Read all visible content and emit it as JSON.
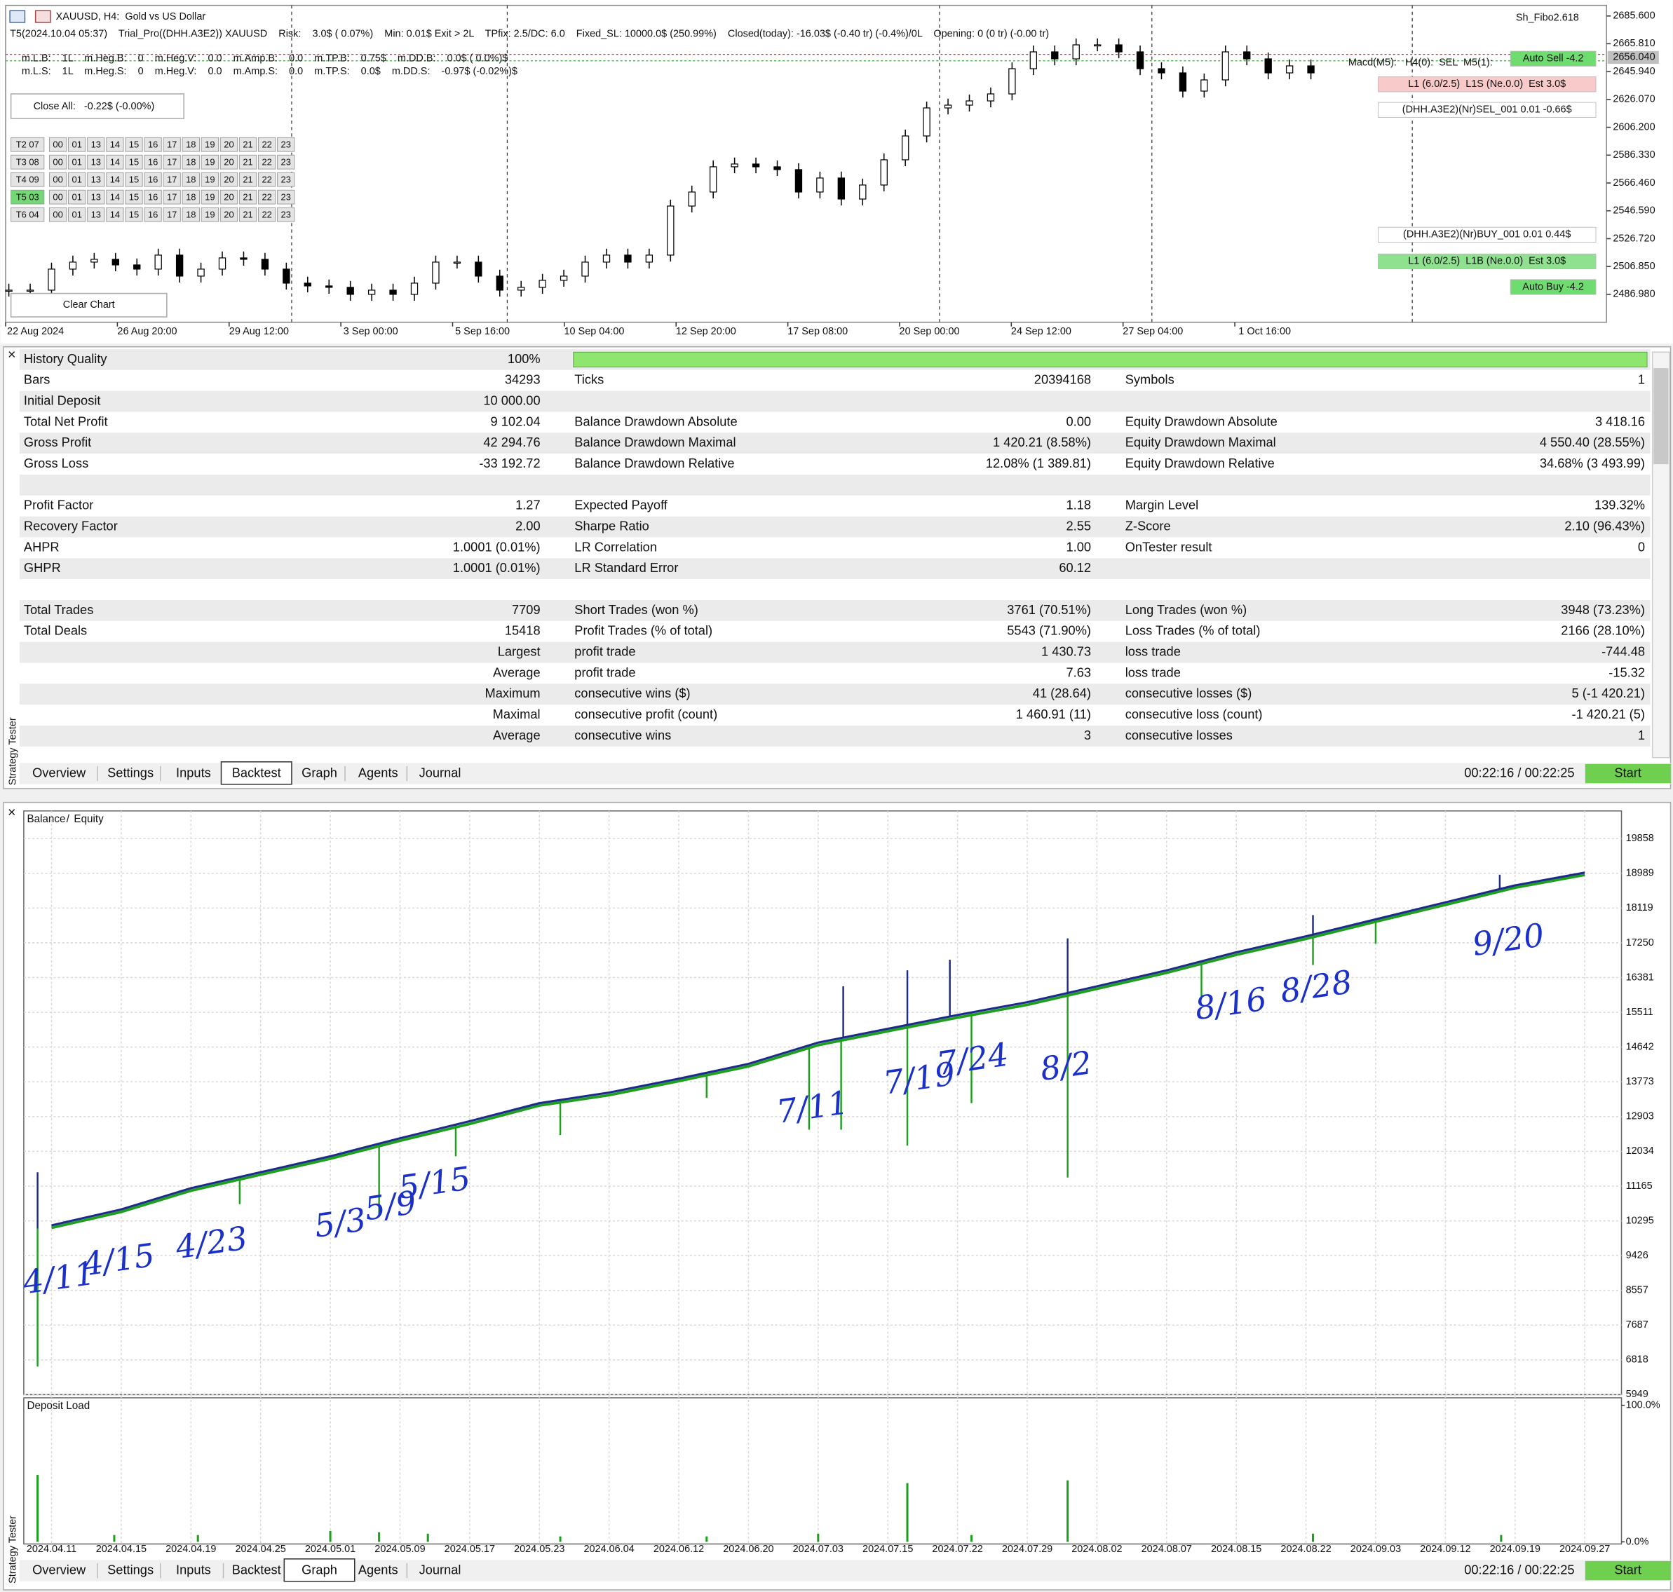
{
  "price_chart": {
    "type": "candlestick",
    "title": "XAUUSD, H4:  Gold vs US Dollar",
    "indicator": "Sh_Fibo2.618",
    "info_lines": [
      "T5(2024.10.04 05:37)    Trial_Pro((DHH.A3E2)) XAUUSD    Risk:    3.0$ ( 0.07%)    Min: 0.01$ Exit > 2L    TPfix: 2.5/DC: 6.0    Fixed_SL: 10000.0$ (250.99%)    Closed(today): -16.03$ (-0.40 tr) (-0.4%)/0L    Opening: 0 (0 tr) (-0.00 tr)",
      "m.L.B:    1L    m.Heg.B:    0    m.Heg.V:    0.0    m.Amp.B:    0.0    m.TP.B:    0.75$    m.DD.B:    0.0$ ( 0.0%)$",
      "m.L.S:    1L    m.Heg.S:    0    m.Heg.V:    0.0    m.Amp.S:    0.0    m.TP.S:    0.0$    m.DD.S:    -0.97$ (-0.02%)$"
    ],
    "overlay_text": "Macd(M5):   H4(0):  SEL  M5(1):",
    "close_all": "Close All:   -0.22$ (-0.00%)",
    "clear_chart": "Clear Chart",
    "schedule": {
      "days": [
        "T2 07",
        "T3 08",
        "T4 09",
        "T5 03",
        "T6 04"
      ],
      "active_day": 3,
      "hours": [
        "00",
        "01",
        "13",
        "14",
        "15",
        "16",
        "17",
        "18",
        "19",
        "20",
        "21",
        "22",
        "23"
      ]
    },
    "side_labels": [
      {
        "text": "Auto Sell -4.2",
        "bg": "#6fdc6f",
        "fg": "#ffffff"
      },
      {
        "text": "L1 (6.0/2.5)  L1S (Ne.0.0)  Est 3.0$",
        "bg": "#f8caca",
        "fg": "#7a1010"
      },
      {
        "text": "(DHH.A3E2)(Nr)SEL_001 0.01 -0.66$",
        "bg": "#ffffff",
        "fg": "#b01818"
      },
      {
        "text": "(DHH.A3E2)(Nr)BUY_001 0.01 0.44$",
        "bg": "#ffffff",
        "fg": "#1a2a90"
      },
      {
        "text": "L1 (6.0/2.5)  L1B (Ne.0.0)  Est 3.0$",
        "bg": "#8fe08f",
        "fg": "#114411"
      },
      {
        "text": "Auto Buy -4.2",
        "bg": "#6fdc6f",
        "fg": "#ffffff"
      }
    ],
    "categories": [
      "22 Aug 2024",
      "26 Aug 20:00",
      "29 Aug 12:00",
      "3 Sep 00:00",
      "5 Sep 16:00",
      "10 Sep 04:00",
      "12 Sep 20:00",
      "17 Sep 08:00",
      "20 Sep 00:00",
      "24 Sep 12:00",
      "27 Sep 04:00",
      "1 Oct 16:00"
    ],
    "closes": [
      2490,
      2490,
      2505,
      2510,
      2512,
      2508,
      2505,
      2515,
      2500,
      2505,
      2513,
      2512,
      2505,
      2495,
      2493,
      2492,
      2487,
      2490,
      2487,
      2495,
      2510,
      2510,
      2500,
      2490,
      2492,
      2497,
      2500,
      2510,
      2515,
      2510,
      2515,
      2550,
      2560,
      2578,
      2580,
      2578,
      2576,
      2560,
      2570,
      2555,
      2565,
      2583,
      2600,
      2620,
      2622,
      2625,
      2630,
      2648,
      2660,
      2655,
      2665,
      2665,
      2660,
      2648,
      2645,
      2632,
      2640,
      2660,
      2655,
      2645,
      2650,
      2645
    ],
    "current_price": {
      "value": 2656.04,
      "label": "2656.040"
    },
    "ylim": [
      2467.1,
      2693.2
    ],
    "yticks": [
      {
        "value": 2685.6,
        "label": "2685.600"
      },
      {
        "value": 2665.81,
        "label": "2665.810"
      },
      {
        "value": 2645.94,
        "label": "2645.940"
      },
      {
        "value": 2626.07,
        "label": "2626.070"
      },
      {
        "value": 2606.2,
        "label": "2606.200"
      },
      {
        "value": 2586.33,
        "label": "2586.330"
      },
      {
        "value": 2566.46,
        "label": "2566.460"
      },
      {
        "value": 2546.59,
        "label": "2546.590"
      },
      {
        "value": 2526.72,
        "label": "2526.720"
      },
      {
        "value": 2506.85,
        "label": "2506.850"
      },
      {
        "value": 2486.98,
        "label": "2486.980"
      }
    ]
  },
  "stats": {
    "history_quality": 100,
    "rows": [
      {
        "l1": "History Quality",
        "v1": "100%"
      },
      {
        "l1": "Bars",
        "v1": "34293",
        "l2": "Ticks",
        "v2": "20394168",
        "l3": "Symbols",
        "v3": "1"
      },
      {
        "l1": "Initial Deposit",
        "v1": "10 000.00"
      },
      {
        "l1": "Total Net Profit",
        "v1": "9 102.04",
        "l2": "Balance Drawdown Absolute",
        "v2": "0.00",
        "l3": "Equity Drawdown Absolute",
        "v3": "3 418.16"
      },
      {
        "l1": "Gross Profit",
        "v1": "42 294.76",
        "l2": "Balance Drawdown Maximal",
        "v2": "1 420.21 (8.58%)",
        "l3": "Equity Drawdown Maximal",
        "v3": "4 550.40 (28.55%)"
      },
      {
        "l1": "Gross Loss",
        "v1": "-33 192.72",
        "l2": "Balance Drawdown Relative",
        "v2": "12.08% (1 389.81)",
        "l3": "Equity Drawdown Relative",
        "v3": "34.68% (3 493.99)"
      },
      {},
      {
        "l1": "Profit Factor",
        "v1": "1.27",
        "l2": "Expected Payoff",
        "v2": "1.18",
        "l3": "Margin Level",
        "v3": "139.32%"
      },
      {
        "l1": "Recovery Factor",
        "v1": "2.00",
        "l2": "Sharpe Ratio",
        "v2": "2.55",
        "l3": "Z-Score",
        "v3": "2.10 (96.43%)"
      },
      {
        "l1": "AHPR",
        "v1": "1.0001 (0.01%)",
        "l2": "LR Correlation",
        "v2": "1.00",
        "l3": "OnTester result",
        "v3": "0"
      },
      {
        "l1": "GHPR",
        "v1": "1.0001 (0.01%)",
        "l2": "LR Standard Error",
        "v2": "60.12"
      },
      {},
      {
        "l1": "Total Trades",
        "v1": "7709",
        "l2": "Short Trades (won %)",
        "v2": "3761 (70.51%)",
        "l3": "Long Trades (won %)",
        "v3": "3948 (73.23%)"
      },
      {
        "l1": "Total Deals",
        "v1": "15418",
        "l2": "Profit Trades (% of total)",
        "v2": "5543 (71.90%)",
        "l3": "Loss Trades (% of total)",
        "v3": "2166 (28.10%)"
      },
      {
        "v1": "Largest",
        "l2": "profit trade",
        "v2": "1 430.73",
        "l3": "loss trade",
        "v3": "-744.48"
      },
      {
        "v1": "Average",
        "l2": "profit trade",
        "v2": "7.63",
        "l3": "loss trade",
        "v3": "-15.32"
      },
      {
        "v1": "Maximum",
        "l2": "consecutive wins ($)",
        "v2": "41 (28.64)",
        "l3": "consecutive losses ($)",
        "v3": "5 (-1 420.21)"
      },
      {
        "v1": "Maximal",
        "l2": "consecutive profit (count)",
        "v2": "1 460.91 (11)",
        "l3": "consecutive loss (count)",
        "v3": "-1 420.21 (5)"
      },
      {
        "v1": "Average",
        "l2": "consecutive wins",
        "v2": "3",
        "l3": "consecutive losses",
        "v3": "1"
      }
    ]
  },
  "tester_tabs": {
    "panel_title": "Strategy Tester",
    "tabs": [
      "Overview",
      "Settings",
      "Inputs",
      "Backtest",
      "Graph",
      "Agents",
      "Journal"
    ],
    "active": 3,
    "time": "00:22:16 / 00:22:25",
    "start": "Start"
  },
  "balance_chart": {
    "type": "line",
    "legend_separator": "/",
    "categories": [
      "2024.04.11",
      "2024.04.15",
      "2024.04.19",
      "2024.04.25",
      "2024.05.01",
      "2024.05.09",
      "2024.05.17",
      "2024.05.23",
      "2024.06.04",
      "2024.06.12",
      "2024.06.20",
      "2024.07.03",
      "2024.07.15",
      "2024.07.22",
      "2024.07.29",
      "2024.08.02",
      "2024.08.07",
      "2024.08.15",
      "2024.08.22",
      "2024.09.03",
      "2024.09.12",
      "2024.09.19",
      "2024.09.27"
    ],
    "series": [
      {
        "name": "Balance",
        "color": "#1c2a8c",
        "values": [
          10183,
          10582,
          11113,
          11512,
          11911,
          12362,
          12788,
          13240,
          13505,
          13851,
          14223,
          14755,
          15100,
          15446,
          15765,
          16163,
          16562,
          17014,
          17413,
          17838,
          18263,
          18688,
          19007
        ]
      },
      {
        "name": "Equity",
        "color": "#1ea01e",
        "values": [
          10120,
          10520,
          11050,
          11450,
          11850,
          12300,
          12720,
          13180,
          13440,
          13790,
          14160,
          14690,
          15040,
          15380,
          15700,
          16100,
          16500,
          16950,
          17350,
          17780,
          18200,
          18630,
          18950
        ]
      }
    ],
    "equity_spikes": [
      {
        "at": -0.2,
        "value": 6650
      },
      {
        "at": -0.2,
        "value": 11510
      },
      {
        "at": 2.7,
        "value": 10714
      },
      {
        "at": 4.7,
        "value": 10449
      },
      {
        "at": 5.8,
        "value": 11911
      },
      {
        "at": 7.3,
        "value": 12442
      },
      {
        "at": 9.4,
        "value": 13372
      },
      {
        "at": 10.87,
        "value": 12575
      },
      {
        "at": 11.33,
        "value": 12575
      },
      {
        "at": 11.36,
        "value": 16163
      },
      {
        "at": 12.28,
        "value": 12176
      },
      {
        "at": 12.28,
        "value": 16562
      },
      {
        "at": 12.89,
        "value": 16828
      },
      {
        "at": 13.2,
        "value": 13240
      },
      {
        "at": 14.58,
        "value": 11379
      },
      {
        "at": 14.58,
        "value": 17360
      },
      {
        "at": 16.5,
        "value": 15897
      },
      {
        "at": 18.1,
        "value": 16695
      },
      {
        "at": 18.1,
        "value": 17944
      },
      {
        "at": 19.0,
        "value": 17227
      },
      {
        "at": 20.78,
        "value": 18954
      }
    ],
    "ylim": [
      5949,
      20549
    ],
    "yticks": [
      19858,
      18989,
      18119,
      17250,
      16381,
      15511,
      14642,
      13773,
      12903,
      12034,
      11165,
      10295,
      9426,
      8557,
      7687,
      6818,
      5949
    ],
    "grid": true,
    "annotations": [
      "4/11",
      "4/15",
      "4/23",
      "5/3",
      "5/9",
      "5/15",
      "7/11",
      "7/19",
      "7/24",
      "8/2",
      "8/16",
      "8/28",
      "9/20"
    ],
    "deposit_load": {
      "title": "Deposit Load",
      "color": "#1ea01e",
      "ylim": [
        0,
        100
      ],
      "yticks": [
        {
          "value": 100,
          "label": "100.0%"
        },
        {
          "value": 0,
          "label": "0.0%"
        }
      ],
      "spikes": [
        {
          "at": -0.2,
          "value": 49
        },
        {
          "at": 0.9,
          "value": 5
        },
        {
          "at": 2.1,
          "value": 5
        },
        {
          "at": 4.0,
          "value": 8
        },
        {
          "at": 4.7,
          "value": 7
        },
        {
          "at": 5.4,
          "value": 6
        },
        {
          "at": 7.3,
          "value": 4
        },
        {
          "at": 9.4,
          "value": 4
        },
        {
          "at": 11.0,
          "value": 6
        },
        {
          "at": 12.28,
          "value": 43
        },
        {
          "at": 13.2,
          "value": 5
        },
        {
          "at": 14.58,
          "value": 45
        },
        {
          "at": 18.1,
          "value": 6
        },
        {
          "at": 20.8,
          "value": 5
        }
      ]
    }
  },
  "graph_tabs": {
    "panel_title": "Strategy Tester",
    "tabs": [
      "Overview",
      "Settings",
      "Inputs",
      "Backtest",
      "Graph",
      "Agents",
      "Journal"
    ],
    "active": 4,
    "time": "00:22:16 / 00:22:25",
    "start": "Start"
  }
}
